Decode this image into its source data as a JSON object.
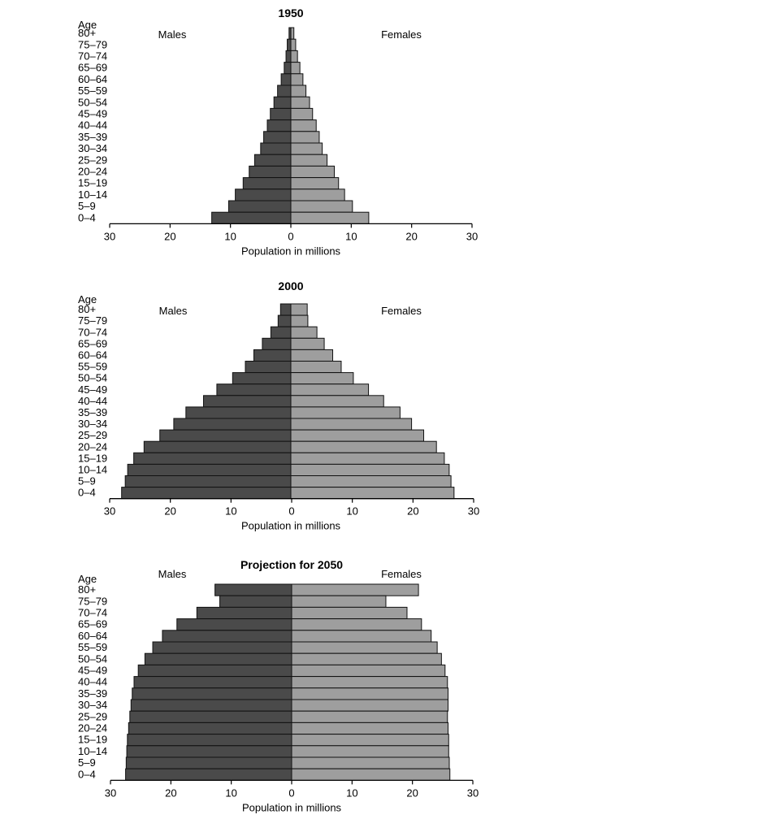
{
  "chart_data": [
    {
      "type": "bar",
      "title": "1950",
      "age_label": "Age",
      "left_label": "Males",
      "right_label": "Females",
      "xlabel": "Population in millions",
      "xlim": [
        -30,
        30
      ],
      "x_ticks": [
        "30",
        "20",
        "10",
        "0",
        "10",
        "20",
        "30"
      ],
      "categories": [
        "80+",
        "75–79",
        "70–74",
        "65–69",
        "60–64",
        "55–59",
        "50–54",
        "45–49",
        "40–44",
        "35–39",
        "30–34",
        "25–29",
        "20–24",
        "15–19",
        "10–14",
        "5–9",
        "0–4"
      ],
      "series": [
        {
          "name": "Males",
          "color": "#4a4a4a",
          "values": [
            0.3,
            0.6,
            0.8,
            1.1,
            1.6,
            2.2,
            2.8,
            3.4,
            3.9,
            4.5,
            5.0,
            6.0,
            6.9,
            7.9,
            9.2,
            10.3,
            13.1
          ]
        },
        {
          "name": "Females",
          "color": "#9e9e9e",
          "values": [
            0.5,
            0.8,
            1.1,
            1.5,
            2.0,
            2.5,
            3.1,
            3.6,
            4.2,
            4.7,
            5.2,
            6.0,
            7.2,
            7.9,
            8.9,
            10.2,
            12.9
          ]
        }
      ]
    },
    {
      "type": "bar",
      "title": "2000",
      "age_label": "Age",
      "left_label": "Males",
      "right_label": "Females",
      "xlabel": "Population in millions",
      "xlim": [
        -30,
        30
      ],
      "x_ticks": [
        "30",
        "20",
        "10",
        "0",
        "10",
        "20",
        "30"
      ],
      "categories": [
        "80+",
        "75–79",
        "70–74",
        "65–69",
        "60–64",
        "55–59",
        "50–54",
        "45–49",
        "40–44",
        "35–39",
        "30–34",
        "25–29",
        "20–24",
        "15–19",
        "10–14",
        "5–9",
        "0–4"
      ],
      "series": [
        {
          "name": "Males",
          "color": "#4a4a4a",
          "values": [
            1.7,
            2.1,
            3.3,
            4.7,
            6.1,
            7.5,
            9.6,
            12.2,
            14.4,
            17.3,
            19.3,
            21.6,
            24.2,
            25.9,
            26.9,
            27.3,
            27.9
          ]
        },
        {
          "name": "Females",
          "color": "#9e9e9e",
          "values": [
            2.7,
            2.8,
            4.3,
            5.5,
            6.9,
            8.3,
            10.3,
            12.8,
            15.3,
            18.0,
            19.9,
            21.9,
            24.0,
            25.3,
            26.1,
            26.4,
            26.9
          ]
        }
      ]
    },
    {
      "type": "bar",
      "title": "Projection for 2050",
      "age_label": "Age",
      "left_label": "Males",
      "right_label": "Females",
      "xlabel": "Population in millions",
      "xlim": [
        -30,
        30
      ],
      "x_ticks": [
        "30",
        "20",
        "10",
        "0",
        "10",
        "20",
        "30"
      ],
      "categories": [
        "80+",
        "75–79",
        "70–74",
        "65–69",
        "60–64",
        "55–59",
        "50–54",
        "45–49",
        "40–44",
        "35–39",
        "30–34",
        "25–29",
        "20–24",
        "15–19",
        "10–14",
        "5–9",
        "0–4"
      ],
      "series": [
        {
          "name": "Males",
          "color": "#4a4a4a",
          "values": [
            12.7,
            11.9,
            15.7,
            19.0,
            21.4,
            23.0,
            24.3,
            25.4,
            26.1,
            26.4,
            26.6,
            26.8,
            27.0,
            27.2,
            27.3,
            27.4,
            27.5
          ]
        },
        {
          "name": "Females",
          "color": "#9e9e9e",
          "values": [
            21.0,
            15.6,
            19.1,
            21.5,
            23.1,
            24.1,
            24.8,
            25.4,
            25.8,
            25.9,
            25.9,
            25.8,
            25.9,
            26.0,
            26.0,
            26.1,
            26.2
          ]
        }
      ]
    }
  ]
}
